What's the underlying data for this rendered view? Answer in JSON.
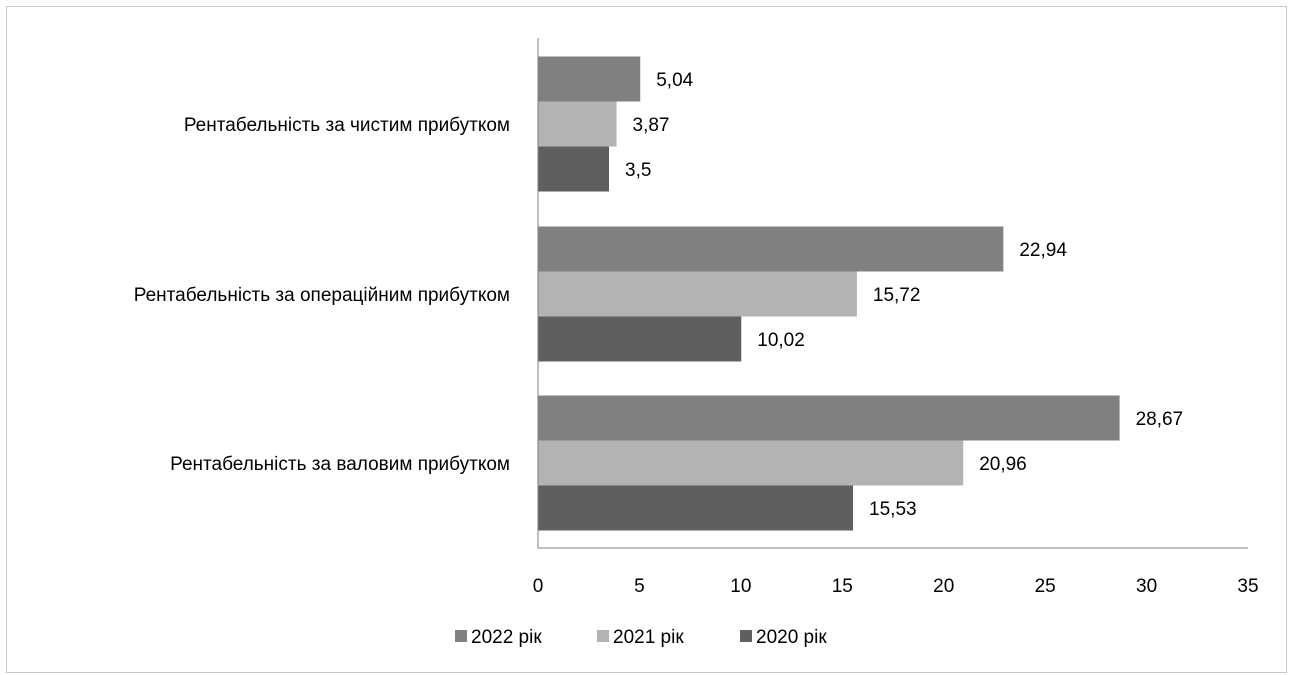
{
  "chart_data": {
    "type": "bar",
    "orientation": "horizontal",
    "title": "",
    "xlabel": "",
    "ylabel": "",
    "categories": [
      "Рентабельність за чистим прибутком",
      "Рентабельність за операційним прибутком",
      "Рентабельність за валовим прибутком"
    ],
    "series": [
      {
        "name": "2022 рік",
        "color": "#808080",
        "values": [
          5.04,
          22.94,
          28.67
        ],
        "labels": [
          "5,04",
          "22,94",
          "28,67"
        ]
      },
      {
        "name": "2021 рік",
        "color": "#b3b3b3",
        "values": [
          3.87,
          15.72,
          20.96
        ],
        "labels": [
          "3,87",
          "15,72",
          "20,96"
        ]
      },
      {
        "name": "2020 рік",
        "color": "#5f5f5f",
        "values": [
          3.5,
          10.02,
          15.53
        ],
        "labels": [
          "3,5",
          "10,02",
          "15,53"
        ]
      }
    ],
    "xlim": [
      0,
      35
    ],
    "xticks": [
      0,
      5,
      10,
      15,
      20,
      25,
      30,
      35
    ],
    "grid": false,
    "legend": "bottom"
  }
}
